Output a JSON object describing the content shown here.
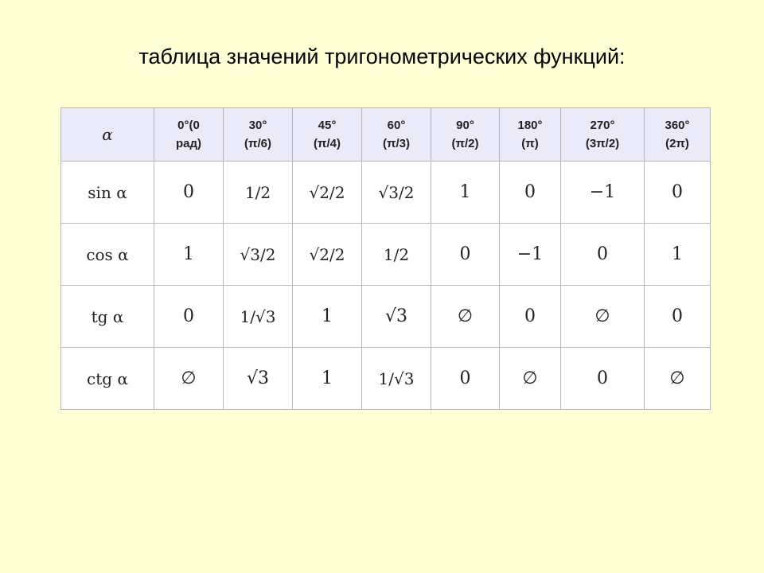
{
  "title": "таблица значений тригонометрических функций:",
  "table": {
    "corner": "α",
    "headers": [
      [
        "0°(0",
        "рад)"
      ],
      [
        "30°",
        "(π/6)"
      ],
      [
        "45°",
        "(π/4)"
      ],
      [
        "60°",
        "(π/3)"
      ],
      [
        "90°",
        "(π/2)"
      ],
      [
        "180°",
        "(π)"
      ],
      [
        "270°",
        "(3π/2)"
      ],
      [
        "360°",
        "(2π)"
      ]
    ],
    "rows": [
      {
        "fn": "sin α",
        "values": [
          "0",
          "1/2",
          "√2/2",
          "√3/2",
          "1",
          "0",
          "−1",
          "0"
        ]
      },
      {
        "fn": "cos α",
        "values": [
          "1",
          "√3/2",
          "√2/2",
          "1/2",
          "0",
          "−1",
          "0",
          "1"
        ]
      },
      {
        "fn": "tg α",
        "values": [
          "0",
          "1/√3",
          "1",
          "√3",
          "∅",
          "0",
          "∅",
          "0"
        ]
      },
      {
        "fn": "ctg α",
        "values": [
          "∅",
          "√3",
          "1",
          "1/√3",
          "0",
          "∅",
          "0",
          "∅"
        ]
      }
    ]
  },
  "colors": {
    "background": "#ffffd6",
    "header": "#eaeaf8",
    "border": "#b8b8b8"
  }
}
